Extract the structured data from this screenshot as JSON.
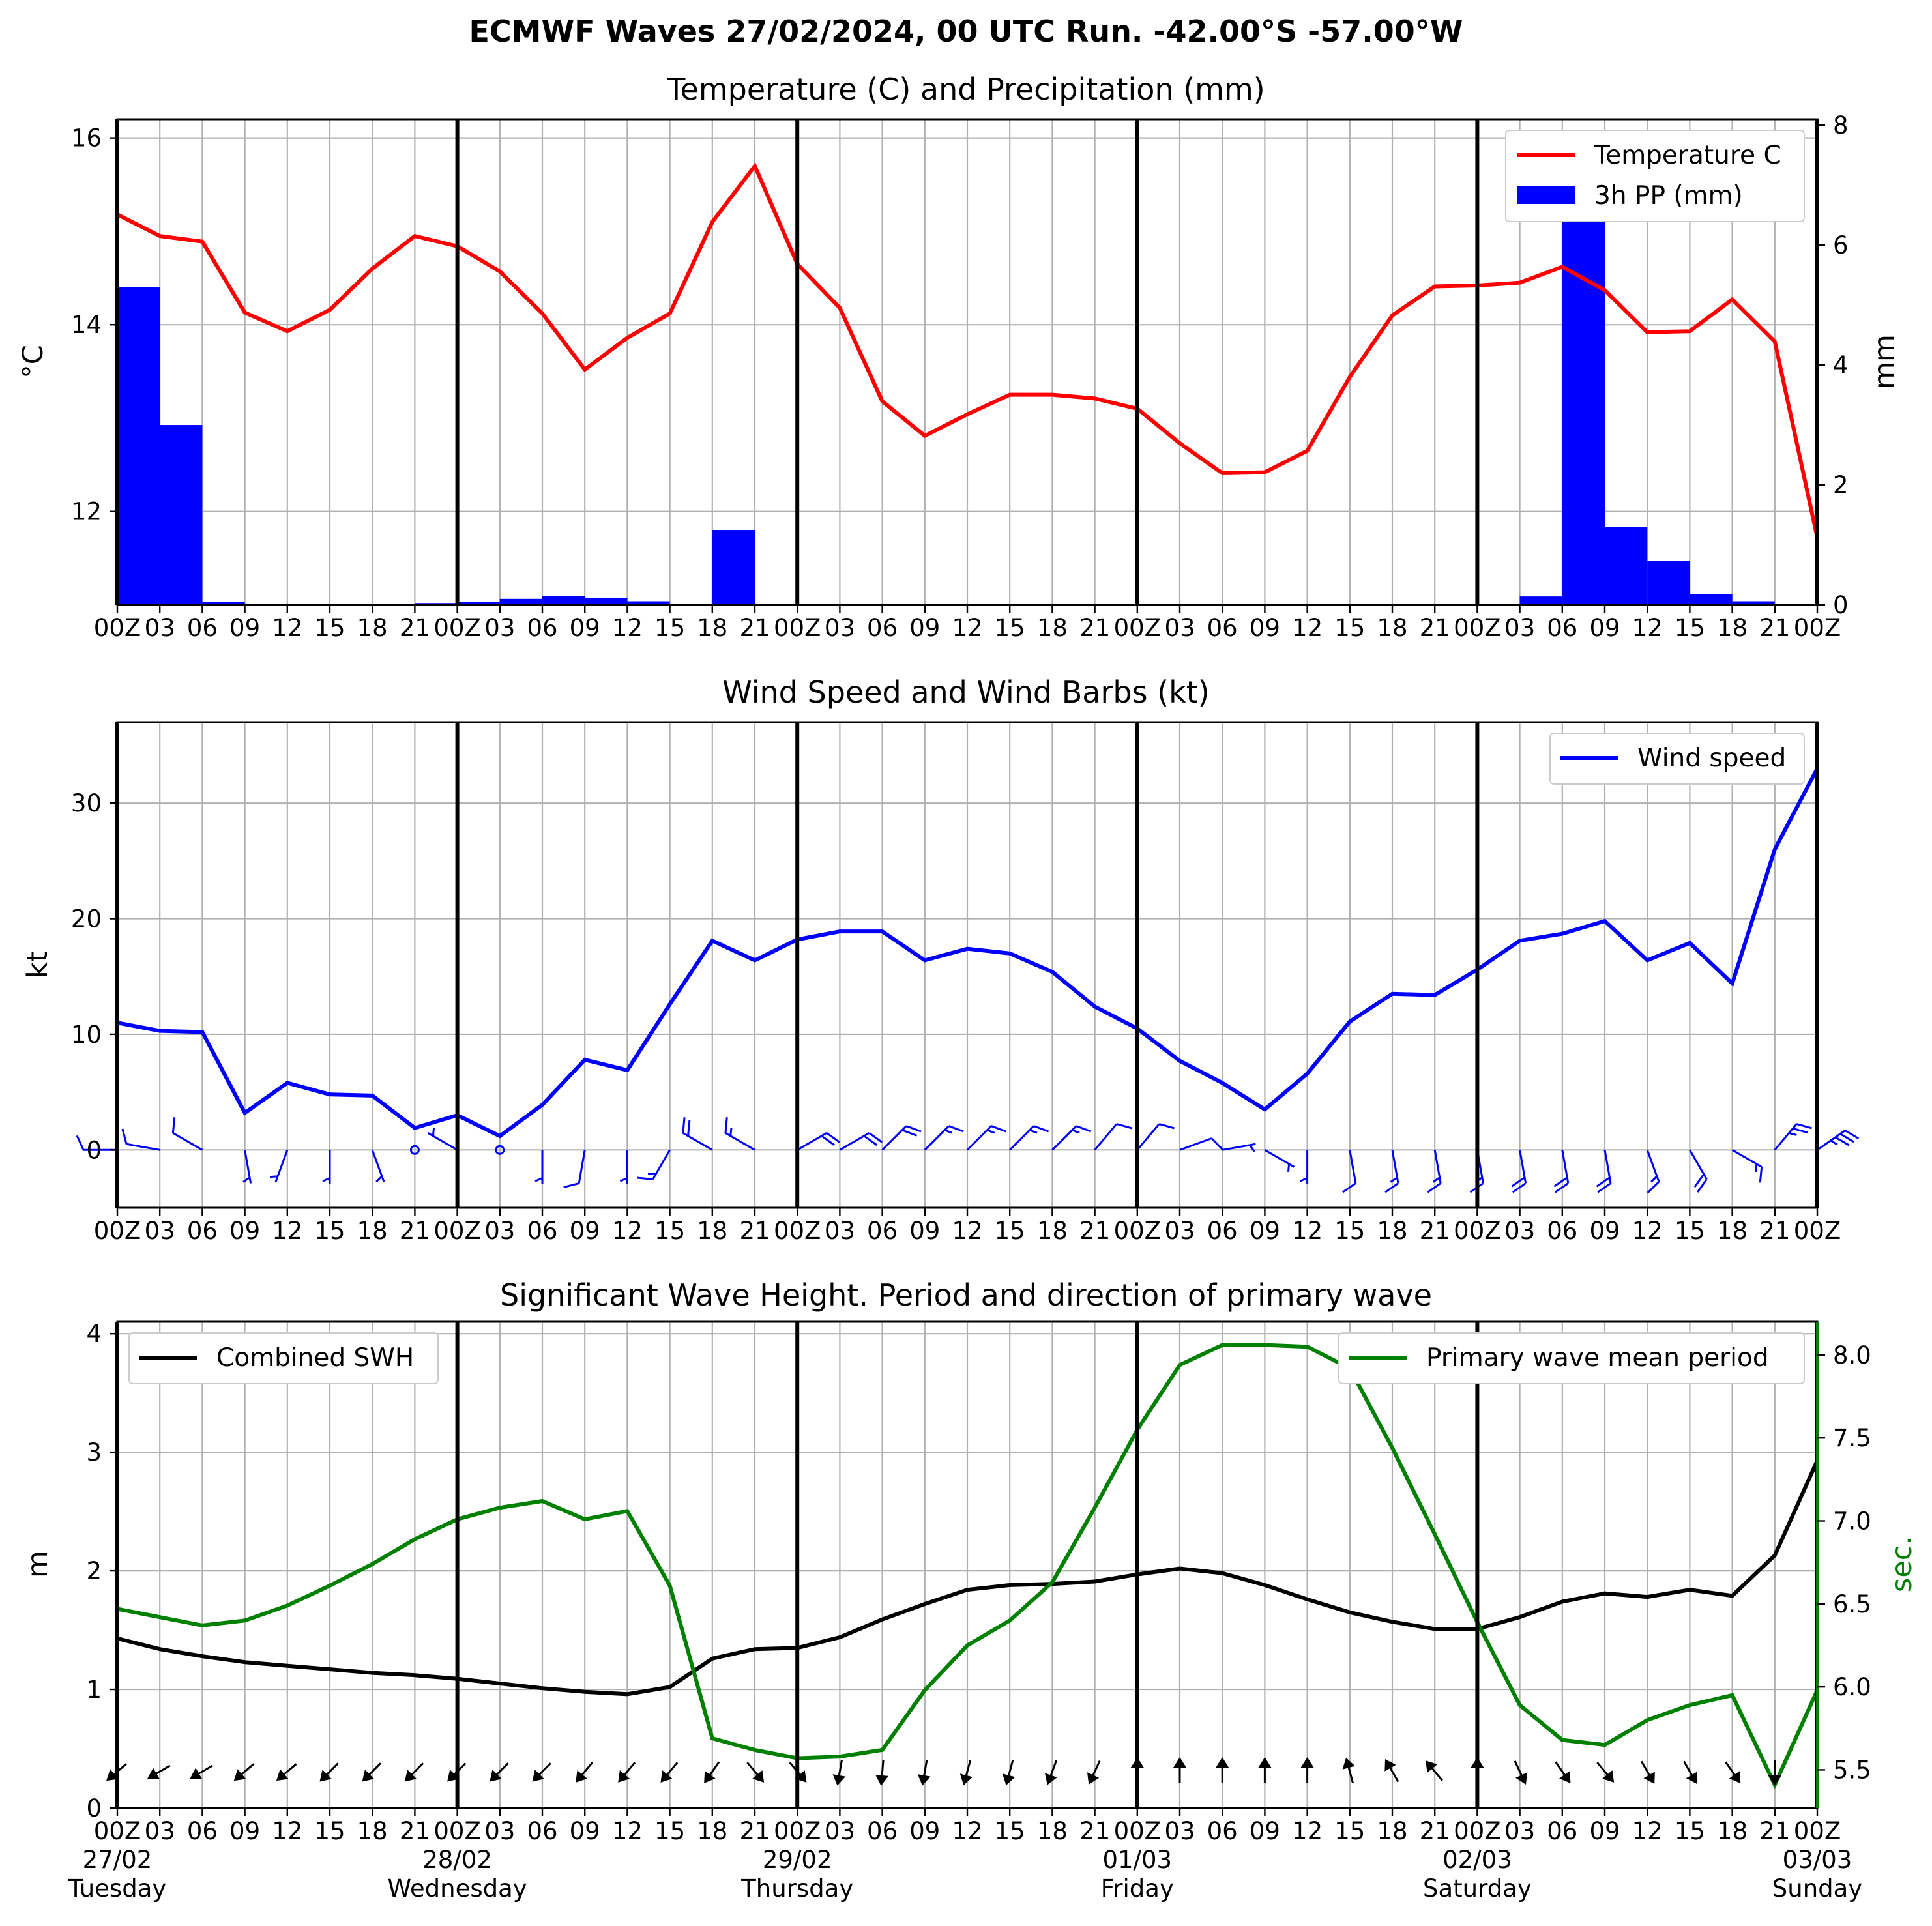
{
  "suptitle": "ECMWF Waves 27/02/2024, 00 UTC Run. -42.00°S -57.00°W",
  "x_tick_labels": [
    "00Z",
    "03",
    "06",
    "09",
    "12",
    "15",
    "18",
    "21",
    "00Z",
    "03",
    "06",
    "09",
    "12",
    "15",
    "18",
    "21",
    "00Z",
    "03",
    "06",
    "09",
    "12",
    "15",
    "18",
    "21",
    "00Z",
    "03",
    "06",
    "09",
    "12",
    "15",
    "18",
    "21",
    "00Z",
    "03",
    "06",
    "09",
    "12",
    "15",
    "18",
    "21",
    "00Z"
  ],
  "day_labels": [
    {
      "date": "27/02",
      "weekday": "Tuesday"
    },
    {
      "date": "28/02",
      "weekday": "Wednesday"
    },
    {
      "date": "29/02",
      "weekday": "Thursday"
    },
    {
      "date": "01/03",
      "weekday": "Friday"
    },
    {
      "date": "02/03",
      "weekday": "Saturday"
    },
    {
      "date": "03/03",
      "weekday": "Sunday"
    }
  ],
  "colors": {
    "temperature": "#ff0000",
    "precipitation": "#0000ff",
    "wind": "#0000ff",
    "swh": "#000000",
    "period": "#008000",
    "grid": "#b0b0b0"
  },
  "chart_data": [
    {
      "type": "line",
      "title": "Temperature (C) and Precipitation (mm)",
      "ylabel": "$^\\circ$C",
      "ylabel_right": "mm",
      "ylim": [
        11.0,
        16.2
      ],
      "ylim_right": [
        0,
        8.1
      ],
      "yticks": [
        12,
        14,
        16
      ],
      "yticks_right": [
        0,
        2,
        4,
        6,
        8
      ],
      "legend_position": "upper right",
      "grid": true,
      "x_hours": [
        0,
        3,
        6,
        9,
        12,
        15,
        18,
        21,
        24,
        27,
        30,
        33,
        36,
        39,
        42,
        45,
        48,
        51,
        54,
        57,
        60,
        63,
        66,
        69,
        72,
        75,
        78,
        81,
        84,
        87,
        90,
        93,
        96,
        99,
        102,
        105,
        108,
        111,
        114,
        117,
        120
      ],
      "series": [
        {
          "name": "Temperature C",
          "kind": "line",
          "values": [
            15.18,
            14.95,
            14.89,
            14.13,
            13.93,
            14.16,
            14.6,
            14.95,
            14.84,
            14.57,
            14.12,
            13.52,
            13.86,
            14.12,
            15.1,
            15.7,
            14.65,
            14.18,
            13.18,
            12.81,
            13.04,
            13.25,
            13.25,
            13.21,
            13.1,
            12.73,
            12.41,
            12.42,
            12.65,
            13.44,
            14.1,
            14.41,
            14.42,
            14.45,
            14.62,
            14.37,
            13.92,
            13.93,
            14.27,
            13.82,
            11.72
          ]
        },
        {
          "name": "3h PP (mm)",
          "kind": "bar",
          "axis": "right",
          "values": [
            5.3,
            3.0,
            0.05,
            0,
            0.02,
            0.02,
            0,
            0.03,
            0.05,
            0.1,
            0.15,
            0.12,
            0.06,
            0,
            1.25,
            0,
            0,
            0,
            0,
            0,
            0,
            0,
            0,
            0,
            0,
            0,
            0,
            0,
            0,
            0,
            0,
            0,
            0,
            0.14,
            7.3,
            1.3,
            0.73,
            0.18,
            0.06,
            0,
            0
          ]
        }
      ]
    },
    {
      "type": "line",
      "title": "Wind Speed and Wind Barbs (kt)",
      "ylabel": "kt",
      "ylim": [
        -5,
        37
      ],
      "yticks": [
        0,
        10,
        20,
        30
      ],
      "legend_position": "upper right",
      "grid": true,
      "x_hours": [
        0,
        3,
        6,
        9,
        12,
        15,
        18,
        21,
        24,
        27,
        30,
        33,
        36,
        39,
        42,
        45,
        48,
        51,
        54,
        57,
        60,
        63,
        66,
        69,
        72,
        75,
        78,
        81,
        84,
        87,
        90,
        93,
        96,
        99,
        102,
        105,
        108,
        111,
        114,
        117,
        120
      ],
      "series": [
        {
          "name": "Wind speed",
          "values": [
            11.0,
            10.3,
            10.2,
            3.2,
            5.8,
            4.8,
            4.7,
            1.9,
            3.0,
            1.2,
            3.9,
            7.8,
            6.9,
            12.6,
            18.1,
            16.4,
            18.2,
            18.9,
            18.9,
            16.4,
            17.4,
            17.0,
            15.4,
            12.4,
            10.5,
            7.7,
            5.8,
            3.5,
            6.6,
            11.1,
            13.5,
            13.4,
            15.6,
            18.1,
            18.7,
            19.8,
            16.4,
            17.9,
            14.4,
            26.0,
            33.0
          ]
        }
      ],
      "wind_barbs": {
        "speed_kt": [
          11.0,
          10.3,
          10.2,
          3.2,
          5.8,
          4.8,
          4.7,
          1.9,
          3.0,
          1.2,
          3.9,
          7.8,
          6.9,
          12.6,
          18.1,
          16.4,
          18.2,
          18.9,
          18.9,
          16.4,
          17.4,
          17.0,
          15.4,
          12.4,
          10.5,
          7.7,
          5.8,
          3.5,
          6.6,
          11.1,
          13.5,
          13.4,
          15.6,
          18.1,
          18.7,
          19.8,
          16.4,
          17.9,
          14.4,
          26.0,
          33.0
        ],
        "direction_deg": [
          270,
          280,
          300,
          170,
          200,
          180,
          160,
          0,
          300,
          310,
          180,
          190,
          180,
          210,
          300,
          300,
          60,
          60,
          45,
          45,
          45,
          45,
          45,
          40,
          40,
          70,
          80,
          120,
          180,
          170,
          170,
          170,
          170,
          170,
          170,
          170,
          160,
          150,
          120,
          40,
          55
        ]
      }
    },
    {
      "type": "line",
      "title": "Significant Wave Height. Period and direction of primary wave",
      "ylabel": "m",
      "ylabel_right": "sec.",
      "ylim": [
        0,
        4.1
      ],
      "ylim_right": [
        5.27,
        8.2
      ],
      "yticks": [
        0,
        1,
        2,
        3,
        4
      ],
      "yticks_right": [
        5.5,
        6.0,
        6.5,
        7.0,
        7.5,
        8.0
      ],
      "legend_position": "upper left / upper right",
      "grid": true,
      "x_hours": [
        0,
        3,
        6,
        9,
        12,
        15,
        18,
        21,
        24,
        27,
        30,
        33,
        36,
        39,
        42,
        45,
        48,
        51,
        54,
        57,
        60,
        63,
        66,
        69,
        72,
        75,
        78,
        81,
        84,
        87,
        90,
        93,
        96,
        99,
        102,
        105,
        108,
        111,
        114,
        117,
        120
      ],
      "series": [
        {
          "name": "Combined SWH",
          "values": [
            1.43,
            1.34,
            1.28,
            1.23,
            1.2,
            1.17,
            1.14,
            1.12,
            1.09,
            1.05,
            1.01,
            0.98,
            0.96,
            1.02,
            1.26,
            1.34,
            1.35,
            1.44,
            1.59,
            1.72,
            1.84,
            1.88,
            1.89,
            1.91,
            1.97,
            2.02,
            1.98,
            1.88,
            1.76,
            1.65,
            1.57,
            1.51,
            1.51,
            1.61,
            1.74,
            1.81,
            1.78,
            1.84,
            1.79,
            2.13,
            2.93
          ]
        },
        {
          "name": "Primary wave mean period",
          "axis": "right",
          "values": [
            6.47,
            6.42,
            6.37,
            6.4,
            6.49,
            6.61,
            6.74,
            6.89,
            7.01,
            7.08,
            7.12,
            7.01,
            7.06,
            6.61,
            5.69,
            5.62,
            5.57,
            5.58,
            5.62,
            5.98,
            6.25,
            6.4,
            6.63,
            7.08,
            7.55,
            7.94,
            8.06,
            8.06,
            8.05,
            7.92,
            7.44,
            6.92,
            6.39,
            5.89,
            5.68,
            5.65,
            5.8,
            5.89,
            5.95,
            5.41,
            5.98
          ]
        }
      ],
      "direction_arrows_deg_toward": [
        230,
        240,
        240,
        230,
        230,
        225,
        225,
        225,
        225,
        225,
        225,
        220,
        220,
        220,
        215,
        140,
        140,
        190,
        185,
        190,
        195,
        195,
        200,
        205,
        0,
        0,
        0,
        0,
        0,
        345,
        330,
        320,
        0,
        155,
        145,
        140,
        150,
        150,
        145,
        180,
        180
      ]
    }
  ]
}
